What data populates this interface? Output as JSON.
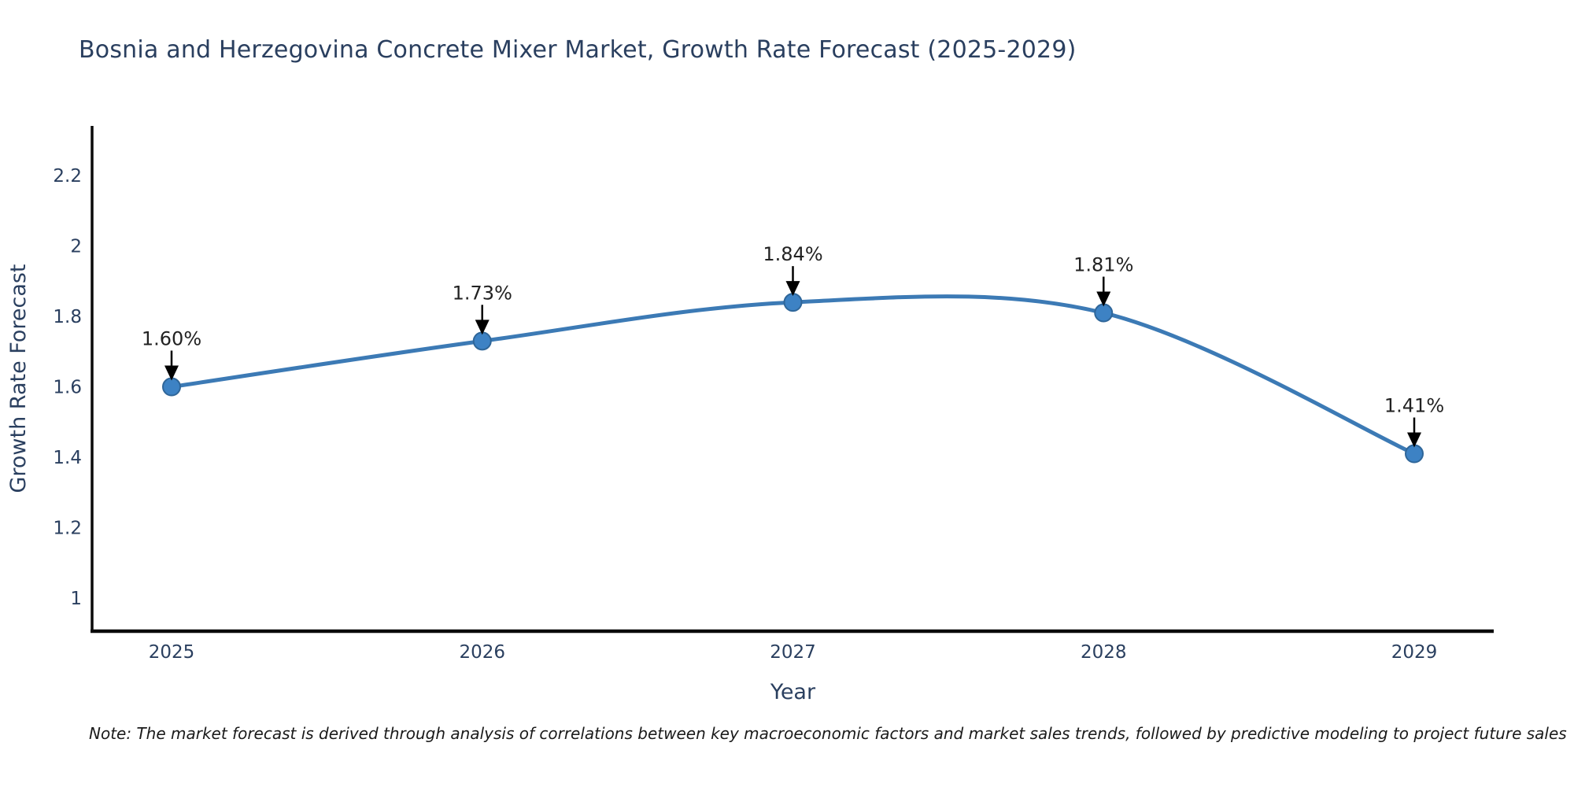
{
  "note": "Note: The market forecast is derived through analysis of correlations between key macroeconomic factors and market sales trends, followed by predictive modeling to project future sales",
  "chart_data": {
    "type": "line",
    "title": "Bosnia and Herzegovina Concrete Mixer Market, Growth Rate Forecast (2025-2029)",
    "xlabel": "Year",
    "ylabel": "Growth Rate Forecast",
    "x": [
      2025,
      2026,
      2027,
      2028,
      2029
    ],
    "xticklabels": [
      "2025",
      "2026",
      "2027",
      "2028",
      "2029"
    ],
    "series": [
      {
        "name": "Growth Rate Forecast",
        "values": [
          1.6,
          1.73,
          1.84,
          1.81,
          1.41
        ],
        "labels": [
          "1.60%",
          "1.73%",
          "1.84%",
          "1.81%",
          "1.41%"
        ]
      }
    ],
    "yticks": [
      1,
      1.2,
      1.4,
      1.6,
      1.8,
      2,
      2.2
    ],
    "ytick_labels": [
      "1",
      "1.2",
      "1.4",
      "1.6",
      "1.8",
      "2",
      "2.2"
    ],
    "ylim": [
      0.906,
      2.341
    ],
    "grid": false,
    "legend": false,
    "line_smooth": true,
    "annotation_arrows": true,
    "colors": {
      "line": "#3c7ab5",
      "marker_fill": "#3d82c4",
      "marker_edge": "#2f6699",
      "axis": "#0a0a0a",
      "tick_text": "#2a3f5f",
      "axis_title_text": "#2a3f5f",
      "title_text": "#2a3f5f",
      "annotation_text": "#222222",
      "note_text": "#1a1a1a"
    }
  }
}
